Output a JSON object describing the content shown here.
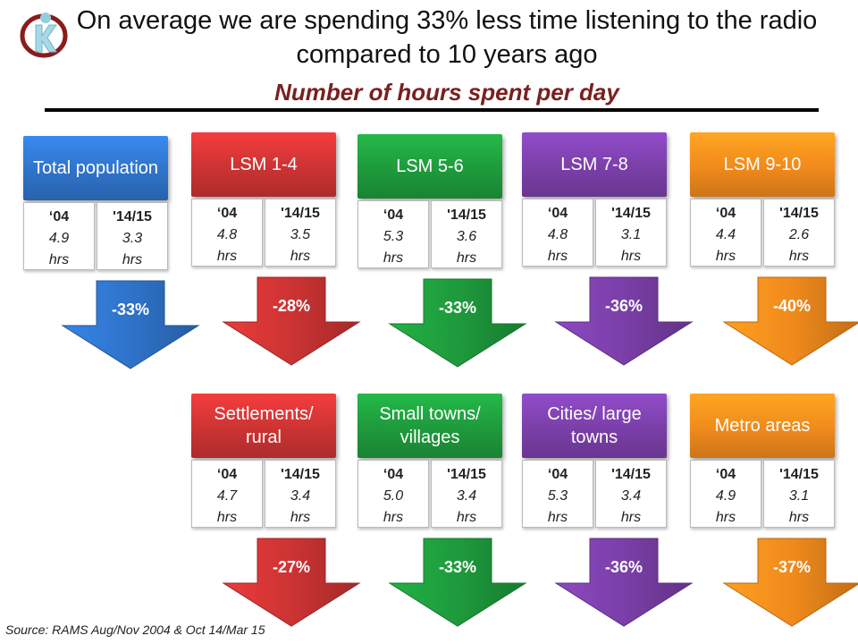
{
  "title": "On average we are spending 33% less time listening to the radio compared to 10 years ago",
  "subtitle": "Number of hours spent per day",
  "source": "Source: RAMS  Aug/Nov 2004 & Oct 14/Mar 15",
  "col_labels": {
    "year1": "‘04",
    "year2": "'14/15",
    "unit": "hrs"
  },
  "cards": [
    {
      "label": "Total population",
      "v1": "4.9",
      "v2": "3.3",
      "change": "-33%",
      "color": "#2f73c9"
    },
    {
      "label": "LSM 1-4",
      "v1": "4.8",
      "v2": "3.5",
      "change": "-28%",
      "color": "#cc3333"
    },
    {
      "label": "LSM 5-6",
      "v1": "5.3",
      "v2": "3.6",
      "change": "-33%",
      "color": "#1e9a3c"
    },
    {
      "label": "LSM 7-8",
      "v1": "4.8",
      "v2": "3.1",
      "change": "-36%",
      "color": "#7a3fa8"
    },
    {
      "label": "LSM 9-10",
      "v1": "4.4",
      "v2": "2.6",
      "change": "-40%",
      "color": "#f08a1c"
    },
    {
      "label": "Settlements/ rural",
      "v1": "4.7",
      "v2": "3.4",
      "change": "-27%",
      "color": "#cc3333"
    },
    {
      "label": "Small towns/ villages",
      "v1": "5.0",
      "v2": "3.4",
      "change": "-33%",
      "color": "#1e9a3c"
    },
    {
      "label": "Cities/ large towns",
      "v1": "5.3",
      "v2": "3.4",
      "change": "-36%",
      "color": "#7a3fa8"
    },
    {
      "label": "Metro areas",
      "v1": "4.9",
      "v2": "3.1",
      "change": "-37%",
      "color": "#f08a1c"
    }
  ]
}
